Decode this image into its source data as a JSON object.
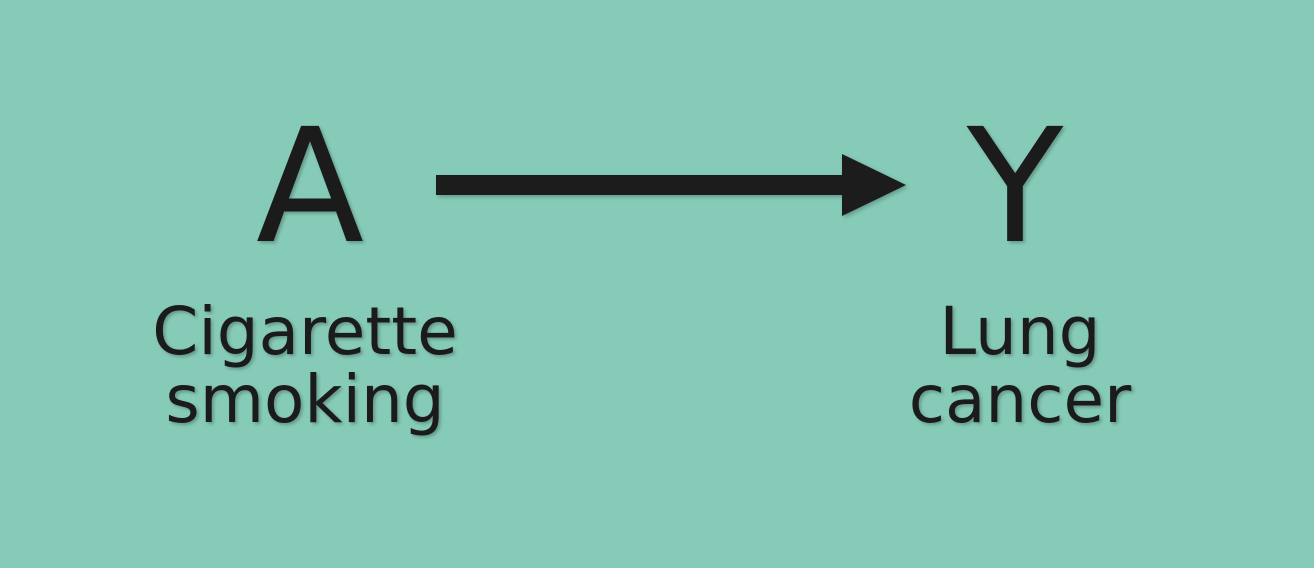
{
  "diagram": {
    "background_color": "#86cbb8",
    "text_color": "#1b1b1b",
    "nodes": [
      {
        "id": "A",
        "letter": "A",
        "label_lines": [
          "Cigarette",
          "smoking"
        ]
      },
      {
        "id": "Y",
        "letter": "Y",
        "label_lines": [
          "Lung",
          "cancer"
        ]
      }
    ],
    "edges": [
      {
        "from": "A",
        "to": "Y",
        "style": "solid-arrow",
        "color": "#1b1b1b"
      }
    ]
  }
}
